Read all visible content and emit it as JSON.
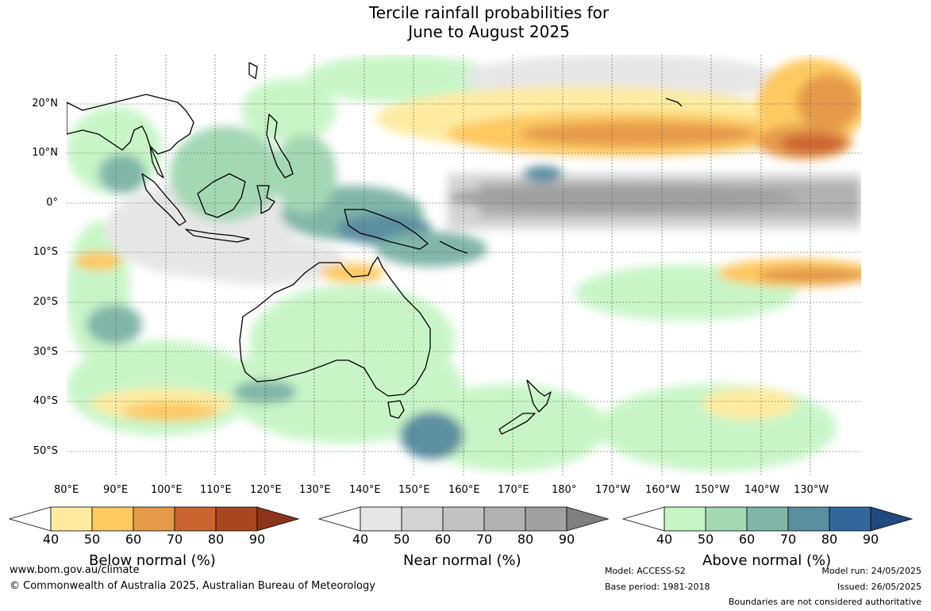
{
  "title": {
    "line1": "Tercile rainfall probabilities for",
    "line2": "June to August 2025"
  },
  "map": {
    "lat_labels": [
      "20°N",
      "10°N",
      "0°",
      "10°S",
      "20°S",
      "30°S",
      "40°S",
      "50°S"
    ],
    "lon_labels": [
      "80°E",
      "90°E",
      "100°E",
      "110°E",
      "120°E",
      "130°E",
      "140°E",
      "150°E",
      "160°E",
      "170°E",
      "180°",
      "170°W",
      "160°W",
      "150°W",
      "140°W",
      "130°W"
    ]
  },
  "legends": [
    {
      "title": "Below normal (%)",
      "ticks": [
        "40",
        "50",
        "60",
        "70",
        "80",
        "90"
      ],
      "colors": [
        "#ffffff",
        "#fdeba0",
        "#fdc960",
        "#e59a48",
        "#cc6430",
        "#a9461f",
        "#8b3419"
      ]
    },
    {
      "title": "Near normal (%)",
      "ticks": [
        "40",
        "50",
        "60",
        "70",
        "80",
        "90"
      ],
      "colors": [
        "#ffffff",
        "#e6e6e6",
        "#d4d4d4",
        "#c2c2c2",
        "#b1b1b1",
        "#a0a0a0",
        "#7f7f7f"
      ]
    },
    {
      "title": "Above normal (%)",
      "ticks": [
        "40",
        "50",
        "60",
        "70",
        "80",
        "90"
      ],
      "colors": [
        "#ffffff",
        "#c8f5c8",
        "#a3d8b4",
        "#80b6a8",
        "#5b8fa0",
        "#336699",
        "#1f4a80"
      ]
    }
  ],
  "footer": {
    "website": "www.bom.gov.au/climate",
    "copyright": "© Commonwealth of Australia 2025, Australian Bureau of Meteorology",
    "model": "Model: ACCESS-S2",
    "base_period": "Base period: 1981-2018",
    "model_run": "Model run: 24/05/2025",
    "issued": "Issued: 26/05/2025",
    "boundaries": "Boundaries are not considered authoritative"
  }
}
